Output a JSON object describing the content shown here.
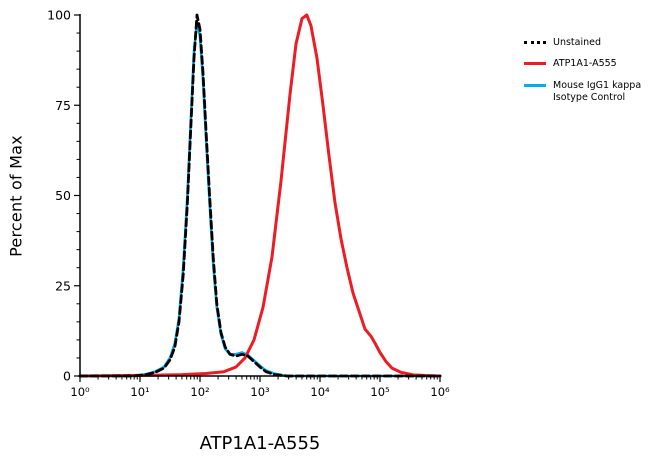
{
  "figure": {
    "background": "#ffffff"
  },
  "chart_data": {
    "type": "line",
    "title": "",
    "xlabel": "ATP1A1-A555",
    "ylabel": "Percent of Max",
    "x_scale": "log10",
    "xlim_log": [
      0,
      6
    ],
    "ylim": [
      0,
      100
    ],
    "grid": false,
    "legend_position": "outside-top-right",
    "y_ticks": [
      0,
      25,
      50,
      75,
      100
    ],
    "y_minor_step": 5,
    "x_ticks": [
      {
        "log": 0,
        "label": "10⁰"
      },
      {
        "log": 1,
        "label": "10¹"
      },
      {
        "log": 2,
        "label": "10²"
      },
      {
        "log": 3,
        "label": "10³"
      },
      {
        "log": 4,
        "label": "10⁴"
      },
      {
        "log": 5,
        "label": "10⁵"
      },
      {
        "log": 6,
        "label": "10⁶"
      }
    ],
    "series": [
      {
        "name": "Unstained",
        "color": "#000000",
        "line_style": "dashed",
        "swatch_style": "dotted",
        "width": 2.8,
        "points": [
          [
            0,
            0
          ],
          [
            0.9,
            0
          ],
          [
            1.1,
            0.4
          ],
          [
            1.25,
            1
          ],
          [
            1.4,
            2.2
          ],
          [
            1.5,
            4.5
          ],
          [
            1.58,
            8
          ],
          [
            1.65,
            15
          ],
          [
            1.72,
            28
          ],
          [
            1.79,
            48
          ],
          [
            1.85,
            70
          ],
          [
            1.9,
            88
          ],
          [
            1.95,
            100
          ],
          [
            2.0,
            96
          ],
          [
            2.05,
            84
          ],
          [
            2.1,
            68
          ],
          [
            2.16,
            50
          ],
          [
            2.22,
            33
          ],
          [
            2.28,
            20
          ],
          [
            2.35,
            12
          ],
          [
            2.42,
            8
          ],
          [
            2.5,
            6
          ],
          [
            2.6,
            5.5
          ],
          [
            2.7,
            6
          ],
          [
            2.8,
            5.5
          ],
          [
            2.9,
            4
          ],
          [
            3.0,
            2.5
          ],
          [
            3.1,
            1.2
          ],
          [
            3.25,
            0.4
          ],
          [
            3.45,
            0
          ],
          [
            6,
            0
          ]
        ]
      },
      {
        "name": "ATP1A1-A555",
        "color": "#ed1c24",
        "line_style": "solid",
        "swatch_style": "solid",
        "width": 3,
        "points": [
          [
            0,
            0
          ],
          [
            1.2,
            0.2
          ],
          [
            1.7,
            0.4
          ],
          [
            2.1,
            0.7
          ],
          [
            2.4,
            1.2
          ],
          [
            2.6,
            2.5
          ],
          [
            2.75,
            5
          ],
          [
            2.9,
            10
          ],
          [
            3.05,
            19
          ],
          [
            3.2,
            33
          ],
          [
            3.35,
            54
          ],
          [
            3.5,
            78
          ],
          [
            3.6,
            92
          ],
          [
            3.7,
            99
          ],
          [
            3.78,
            100
          ],
          [
            3.85,
            97
          ],
          [
            3.95,
            88
          ],
          [
            4.05,
            75
          ],
          [
            4.15,
            61
          ],
          [
            4.25,
            48
          ],
          [
            4.35,
            38
          ],
          [
            4.45,
            30
          ],
          [
            4.55,
            23
          ],
          [
            4.65,
            18
          ],
          [
            4.75,
            13
          ],
          [
            4.85,
            11
          ],
          [
            4.92,
            9
          ],
          [
            5.0,
            6.5
          ],
          [
            5.1,
            4
          ],
          [
            5.2,
            2.2
          ],
          [
            5.35,
            1
          ],
          [
            5.55,
            0.3
          ],
          [
            5.8,
            0.1
          ],
          [
            6,
            0
          ]
        ]
      },
      {
        "name": "Mouse IgG1 kappa Isotype Control",
        "legend_lines": [
          "Mouse IgG1 kappa",
          "Isotype Control"
        ],
        "color": "#00aeef",
        "line_style": "solid",
        "swatch_style": "solid",
        "width": 2.6,
        "points": [
          [
            0,
            0
          ],
          [
            0.9,
            0
          ],
          [
            1.1,
            0.5
          ],
          [
            1.25,
            1.2
          ],
          [
            1.4,
            2.5
          ],
          [
            1.5,
            5
          ],
          [
            1.58,
            9
          ],
          [
            1.65,
            16
          ],
          [
            1.72,
            30
          ],
          [
            1.79,
            50
          ],
          [
            1.85,
            72
          ],
          [
            1.9,
            90
          ],
          [
            1.95,
            98
          ],
          [
            2.0,
            94
          ],
          [
            2.05,
            82
          ],
          [
            2.1,
            66
          ],
          [
            2.16,
            48
          ],
          [
            2.22,
            31
          ],
          [
            2.28,
            19
          ],
          [
            2.35,
            11.5
          ],
          [
            2.42,
            7.5
          ],
          [
            2.5,
            6
          ],
          [
            2.6,
            6
          ],
          [
            2.7,
            6.5
          ],
          [
            2.8,
            5.8
          ],
          [
            2.9,
            4.3
          ],
          [
            3.0,
            2.8
          ],
          [
            3.1,
            1.5
          ],
          [
            3.25,
            0.6
          ],
          [
            3.45,
            0
          ],
          [
            6,
            0
          ]
        ]
      }
    ]
  }
}
